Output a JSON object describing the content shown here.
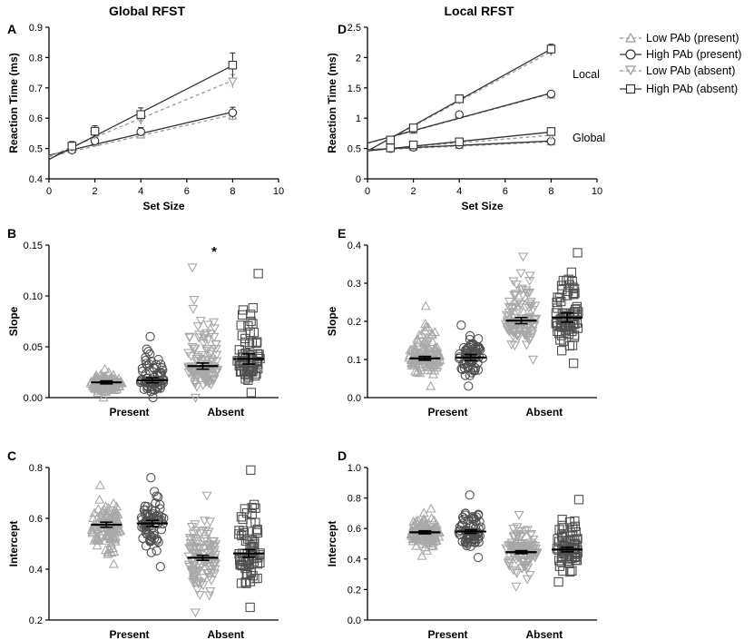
{
  "titles": {
    "global": "Global RFST",
    "local": "Local RFST"
  },
  "panels": {
    "A": "A",
    "B": "B",
    "C": "C",
    "D_top": "D",
    "E": "E",
    "D_bottom": "D"
  },
  "legend": {
    "items": [
      {
        "label": "Low PAb (present)",
        "marker": "triangle-up",
        "color": "#9a9a9a",
        "dash": true
      },
      {
        "label": "High PAb (present)",
        "marker": "circle",
        "color": "#333333",
        "dash": false
      },
      {
        "label": "Low PAb (absent)",
        "marker": "triangle-down",
        "color": "#9a9a9a",
        "dash": true
      },
      {
        "label": "High PAb (absent)",
        "marker": "square",
        "color": "#333333",
        "dash": false
      }
    ]
  },
  "annotations": {
    "local": "Local",
    "global": "Global",
    "star": "*"
  },
  "chart_data": [
    {
      "id": "A",
      "type": "line",
      "title": "Global RFST",
      "xlabel": "Set Size",
      "ylabel": "Reaction Time (ms)",
      "xlim": [
        0,
        10
      ],
      "ylim": [
        0.4,
        0.9
      ],
      "xticks": [
        0,
        2,
        4,
        6,
        8,
        10
      ],
      "yticks": [
        0.4,
        0.5,
        0.6,
        0.7,
        0.8,
        0.9
      ],
      "x": [
        1,
        2,
        4,
        8
      ],
      "series": [
        {
          "name": "Low PAb (present)",
          "values": [
            0.497,
            0.52,
            0.545,
            0.607
          ],
          "err": [
            0.012,
            0.01,
            0.012,
            0.014
          ],
          "fit": [
            0.473,
            0.0173
          ]
        },
        {
          "name": "High PAb (present)",
          "values": [
            0.495,
            0.525,
            0.555,
            0.618
          ],
          "err": [
            0.015,
            0.012,
            0.014,
            0.018
          ],
          "fit": [
            0.478,
            0.0178
          ]
        },
        {
          "name": "Low PAb (absent)",
          "values": [
            0.505,
            0.545,
            0.595,
            0.722
          ],
          "err": [
            0.012,
            0.012,
            0.015,
            0.022
          ],
          "fit": [
            0.474,
            0.0313
          ]
        },
        {
          "name": "High PAb (absent)",
          "values": [
            0.508,
            0.557,
            0.612,
            0.775
          ],
          "err": [
            0.015,
            0.018,
            0.022,
            0.04
          ],
          "fit": [
            0.464,
            0.0387
          ]
        }
      ]
    },
    {
      "id": "D_top",
      "type": "line",
      "title": "Local RFST",
      "xlabel": "Set Size",
      "ylabel": "Reaction Time (ms)",
      "xlim": [
        0,
        10
      ],
      "ylim": [
        0,
        2.5
      ],
      "xticks": [
        0,
        2,
        4,
        6,
        8,
        10
      ],
      "yticks": [
        0,
        0.5,
        1.0,
        1.5,
        2.0,
        2.5
      ],
      "x": [
        1,
        2,
        4,
        8
      ],
      "groups": [
        {
          "name": "Local",
          "series": [
            {
              "name": "Low PAb (present)",
              "values": [
                0.64,
                0.8,
                1.06,
                1.38
              ],
              "err": [
                0.03,
                0.03,
                0.04,
                0.05
              ],
              "fit": [
                0.585,
                0.1025
              ]
            },
            {
              "name": "High PAb (present)",
              "values": [
                0.64,
                0.82,
                1.06,
                1.4
              ],
              "err": [
                0.03,
                0.04,
                0.04,
                0.05
              ],
              "fit": [
                0.59,
                0.103
              ]
            },
            {
              "name": "Low PAb (absent)",
              "values": [
                0.64,
                0.83,
                1.3,
                2.1
              ],
              "err": [
                0.04,
                0.04,
                0.05,
                0.07
              ],
              "fit": [
                0.46,
                0.205
              ]
            },
            {
              "name": "High PAb (absent)",
              "values": [
                0.64,
                0.84,
                1.32,
                2.14
              ],
              "err": [
                0.04,
                0.05,
                0.06,
                0.08
              ],
              "fit": [
                0.46,
                0.21
              ]
            }
          ]
        },
        {
          "name": "Global",
          "series": [
            {
              "name": "Low PAb (present)",
              "values": [
                0.5,
                0.52,
                0.55,
                0.61
              ],
              "err": [
                0.02,
                0.02,
                0.02,
                0.02
              ],
              "fit": [
                0.47,
                0.0175
              ]
            },
            {
              "name": "High PAb (present)",
              "values": [
                0.5,
                0.52,
                0.56,
                0.62
              ],
              "err": [
                0.02,
                0.02,
                0.02,
                0.03
              ],
              "fit": [
                0.48,
                0.018
              ]
            },
            {
              "name": "Low PAb (absent)",
              "values": [
                0.51,
                0.55,
                0.6,
                0.72
              ],
              "err": [
                0.02,
                0.02,
                0.02,
                0.03
              ],
              "fit": [
                0.47,
                0.031
              ]
            },
            {
              "name": "High PAb (absent)",
              "values": [
                0.51,
                0.56,
                0.61,
                0.78
              ],
              "err": [
                0.02,
                0.02,
                0.03,
                0.04
              ],
              "fit": [
                0.46,
                0.039
              ]
            }
          ]
        }
      ]
    },
    {
      "id": "B",
      "type": "scatter",
      "ylabel": "Slope",
      "ylim": [
        0,
        0.15
      ],
      "yticks": [
        0.0,
        0.05,
        0.1,
        0.15
      ],
      "ytick_labels": [
        "0.00",
        "0.05",
        "0.10",
        "0.15"
      ],
      "categories": [
        "Present",
        "Absent"
      ],
      "groups": [
        {
          "name": "Low PAb (present)",
          "category": "Present",
          "mean": 0.015,
          "sem": 0.0015,
          "min": 0.0,
          "max": 0.028,
          "n": 110
        },
        {
          "name": "High PAb (present)",
          "category": "Present",
          "mean": 0.017,
          "sem": 0.0025,
          "min": 0.0,
          "max": 0.06,
          "n": 70
        },
        {
          "name": "Low PAb (absent)",
          "category": "Absent",
          "mean": 0.031,
          "sem": 0.003,
          "min": 0.0,
          "max": 0.128,
          "n": 110
        },
        {
          "name": "High PAb (absent)",
          "category": "Absent",
          "mean": 0.038,
          "sem": 0.005,
          "min": 0.005,
          "max": 0.122,
          "n": 70
        }
      ]
    },
    {
      "id": "E",
      "type": "scatter",
      "ylabel": "Slope",
      "ylim": [
        0,
        0.4
      ],
      "yticks": [
        0.0,
        0.1,
        0.2,
        0.3,
        0.4
      ],
      "ytick_labels": [
        "0.0",
        "0.1",
        "0.2",
        "0.3",
        "0.4"
      ],
      "categories": [
        "Present",
        "Absent"
      ],
      "groups": [
        {
          "name": "Low PAb (present)",
          "category": "Present",
          "mean": 0.103,
          "sem": 0.005,
          "min": 0.03,
          "max": 0.24,
          "n": 110
        },
        {
          "name": "High PAb (present)",
          "category": "Present",
          "mean": 0.105,
          "sem": 0.008,
          "min": 0.03,
          "max": 0.19,
          "n": 70
        },
        {
          "name": "Low PAb (absent)",
          "category": "Absent",
          "mean": 0.202,
          "sem": 0.008,
          "min": 0.1,
          "max": 0.37,
          "n": 110
        },
        {
          "name": "High PAb (absent)",
          "category": "Absent",
          "mean": 0.21,
          "sem": 0.012,
          "min": 0.09,
          "max": 0.38,
          "n": 70
        }
      ]
    },
    {
      "id": "C",
      "type": "scatter",
      "ylabel": "Intercept",
      "ylim": [
        0.2,
        0.8
      ],
      "yticks": [
        0.2,
        0.4,
        0.6,
        0.8
      ],
      "ytick_labels": [
        "0.2",
        "0.4",
        "0.6",
        "0.8"
      ],
      "categories": [
        "Present",
        "Absent"
      ],
      "groups": [
        {
          "name": "Low PAb (present)",
          "category": "Present",
          "mean": 0.575,
          "sem": 0.01,
          "min": 0.42,
          "max": 0.73,
          "n": 110
        },
        {
          "name": "High PAb (present)",
          "category": "Present",
          "mean": 0.58,
          "sem": 0.012,
          "min": 0.41,
          "max": 0.76,
          "n": 70
        },
        {
          "name": "Low PAb (absent)",
          "category": "Absent",
          "mean": 0.445,
          "sem": 0.01,
          "min": 0.23,
          "max": 0.69,
          "n": 110
        },
        {
          "name": "High PAb (absent)",
          "category": "Absent",
          "mean": 0.462,
          "sem": 0.015,
          "min": 0.25,
          "max": 0.79,
          "n": 70
        }
      ]
    },
    {
      "id": "D_bottom",
      "type": "scatter",
      "ylabel": "Intercept",
      "ylim": [
        0,
        1.0
      ],
      "yticks": [
        0.0,
        0.2,
        0.4,
        0.6,
        0.8,
        1.0
      ],
      "ytick_labels": [
        "0.0",
        "0.2",
        "0.4",
        "0.6",
        "0.8",
        "1.0"
      ],
      "categories": [
        "Present",
        "Absent"
      ],
      "groups": [
        {
          "name": "Low PAb (present)",
          "category": "Present",
          "mean": 0.575,
          "sem": 0.01,
          "min": 0.42,
          "max": 0.73,
          "n": 110
        },
        {
          "name": "High PAb (present)",
          "category": "Present",
          "mean": 0.58,
          "sem": 0.012,
          "min": 0.41,
          "max": 0.82,
          "n": 70
        },
        {
          "name": "Low PAb (absent)",
          "category": "Absent",
          "mean": 0.445,
          "sem": 0.01,
          "min": 0.22,
          "max": 0.69,
          "n": 110
        },
        {
          "name": "High PAb (absent)",
          "category": "Absent",
          "mean": 0.462,
          "sem": 0.015,
          "min": 0.25,
          "max": 0.79,
          "n": 70
        }
      ]
    }
  ]
}
